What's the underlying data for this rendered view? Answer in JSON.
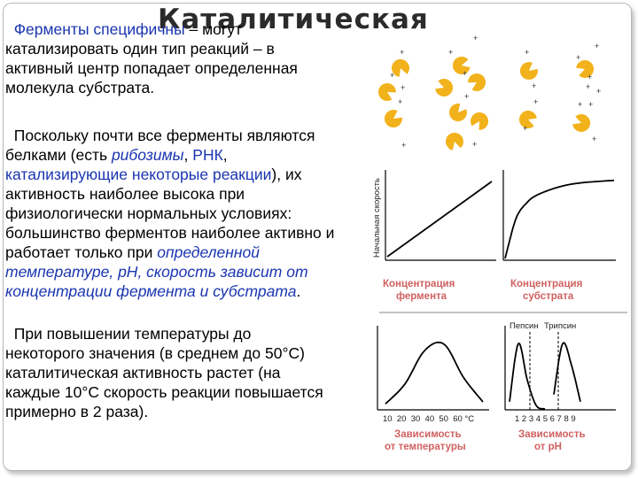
{
  "title": "Каталитическая",
  "p1": {
    "l1_a": "Ферменты специфичны",
    "l1_b": " – могут",
    "l2": "катализировать один тип реакций – в",
    "l3": "активный центр попадает определенная",
    "l4": "молекула субстрата."
  },
  "p2": {
    "l1": "Поскольку почти все ферменты являются",
    "l2_a": "белками (есть ",
    "l2_b": "рибозимы",
    "l2_c": ", ",
    "l2_d": "РНК",
    "l2_e": ",",
    "l3_a": "катализирующие некоторые реакции",
    "l3_b": "), их",
    "l4": "активность наиболее высока при",
    "l5": "физиологически нормальных условиях:",
    "l6": "большинство ферментов наиболее активно и",
    "l7_a": "работает только при ",
    "l7_b": "определенной",
    "l8": "температуре, pH, скорость зависит от",
    "l9_a": "концентрации фермента и субстрата",
    "l9_b": "."
  },
  "p3": {
    "l1": "При повышении температуры до",
    "l2": "некоторого значения (в среднем до 50°C)",
    "l3": "каталитическая активность растет (на",
    "l4": "каждые 10°C скорость реакции повышается",
    "l5": "примерно в 2 раза)."
  },
  "figure": {
    "y_axis_label": "Начальная скорость",
    "cap_enzyme_1": "Концентрация",
    "cap_enzyme_2": "фермента",
    "cap_substrate_1": "Концентрация",
    "cap_substrate_2": "субстрата",
    "temp_ticks": "10  20  30  40  50  60 °C",
    "ph_ticks": "1 2 3 4 5 6 7 8 9",
    "legend_pepsin": "Пепсин",
    "legend_trypsin": "Трипсин",
    "cap_temp_1": "Зависимость",
    "cap_temp_2": "от температуры",
    "cap_ph_1": "Зависимость",
    "cap_ph_2": "от pH",
    "plus_sign": "+",
    "caption_color": "#d06060",
    "enzyme_color": "#f2b21c"
  },
  "chart_data": [
    {
      "type": "line",
      "title": "",
      "xlabel": "Концентрация фермента",
      "ylabel": "Начальная скорость",
      "series": [
        {
          "x": [
            0,
            1
          ],
          "y": [
            0,
            1
          ]
        }
      ]
    },
    {
      "type": "line",
      "title": "",
      "xlabel": "Концентрация субстрата",
      "ylabel": "",
      "series": [
        {
          "x": [
            0,
            0.1,
            0.2,
            0.3,
            0.5,
            0.7,
            1.0
          ],
          "y": [
            0,
            0.5,
            0.7,
            0.8,
            0.9,
            0.95,
            0.98
          ]
        }
      ]
    },
    {
      "type": "line",
      "title": "",
      "xlabel": "Зависимость от температуры",
      "ylabel": "",
      "x_ticks": [
        10,
        20,
        30,
        40,
        50,
        60
      ],
      "x_unit": "°C",
      "series": [
        {
          "x": [
            10,
            20,
            30,
            40,
            50,
            60
          ],
          "y": [
            0.05,
            0.35,
            0.85,
            0.95,
            0.45,
            0.08
          ]
        }
      ]
    },
    {
      "type": "line",
      "title": "",
      "xlabel": "Зависимость от pH",
      "ylabel": "",
      "x_ticks": [
        1,
        2,
        3,
        4,
        5,
        6,
        7,
        8,
        9
      ],
      "series": [
        {
          "name": "Пепсин",
          "x": [
            1,
            2,
            3,
            4,
            5
          ],
          "y": [
            0.1,
            0.9,
            0.4,
            0.05,
            0
          ]
        },
        {
          "name": "Трипсин",
          "x": [
            6,
            7,
            8,
            9
          ],
          "y": [
            0.2,
            0.9,
            0.6,
            0.1
          ]
        }
      ]
    }
  ]
}
